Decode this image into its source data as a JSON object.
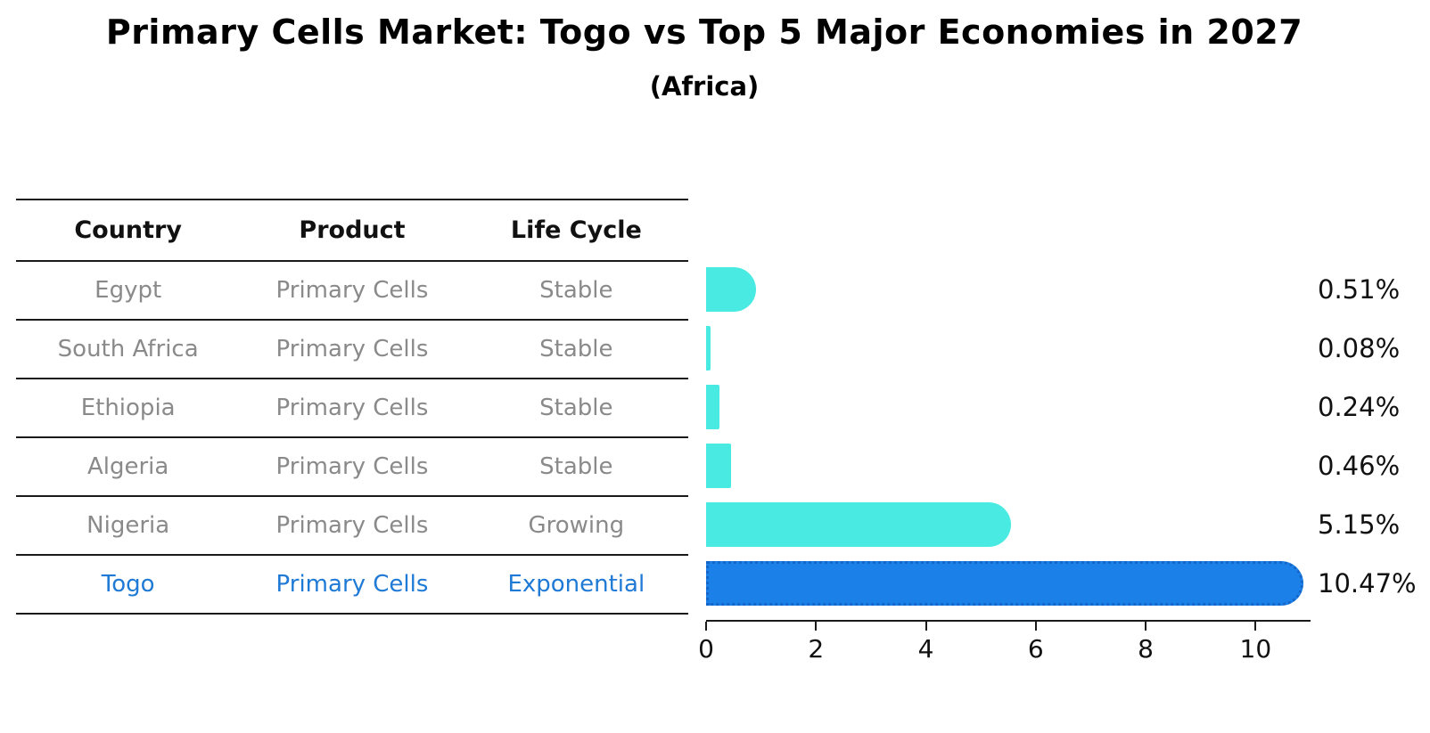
{
  "title": "Primary Cells Market: Togo vs Top 5 Major Economies in 2027",
  "subtitle": "(Africa)",
  "table": {
    "headers": [
      "Country",
      "Product",
      "Life Cycle"
    ],
    "rows": [
      {
        "country": "Egypt",
        "product": "Primary Cells",
        "life_cycle": "Stable",
        "highlight": false
      },
      {
        "country": "South Africa",
        "product": "Primary Cells",
        "life_cycle": "Stable",
        "highlight": false
      },
      {
        "country": "Ethiopia",
        "product": "Primary Cells",
        "life_cycle": "Stable",
        "highlight": false
      },
      {
        "country": "Algeria",
        "product": "Primary Cells",
        "life_cycle": "Stable",
        "highlight": false
      },
      {
        "country": "Nigeria",
        "product": "Primary Cells",
        "life_cycle": "Growing",
        "highlight": false
      },
      {
        "country": "Togo",
        "product": "Primary Cells",
        "life_cycle": "Exponential",
        "highlight": true
      }
    ]
  },
  "chart_data": {
    "type": "bar",
    "orientation": "horizontal",
    "title": "Primary Cells Market: Togo vs Top 5 Major Economies in 2027",
    "subtitle": "(Africa)",
    "categories": [
      "Egypt",
      "South Africa",
      "Ethiopia",
      "Algeria",
      "Nigeria",
      "Togo"
    ],
    "values": [
      0.51,
      0.08,
      0.24,
      0.46,
      5.15,
      10.47
    ],
    "value_labels": [
      "0.51%",
      "0.08%",
      "0.24%",
      "0.46%",
      "5.15%",
      "10.47%"
    ],
    "xlabel": "",
    "ylabel": "",
    "xlim": [
      0,
      11
    ],
    "x_ticks": [
      0,
      2,
      4,
      6,
      8,
      10
    ],
    "grid": false,
    "legend": false,
    "highlight_index": 5
  },
  "colors": {
    "bar": "#48EAE2",
    "highlight_bar": "#1B80E8",
    "highlight_border": "#1566C9",
    "highlight_text": "#1F7AD6",
    "table_text": "#8A8A8A",
    "heading_text": "#111111",
    "line": "#1A1A1A"
  }
}
